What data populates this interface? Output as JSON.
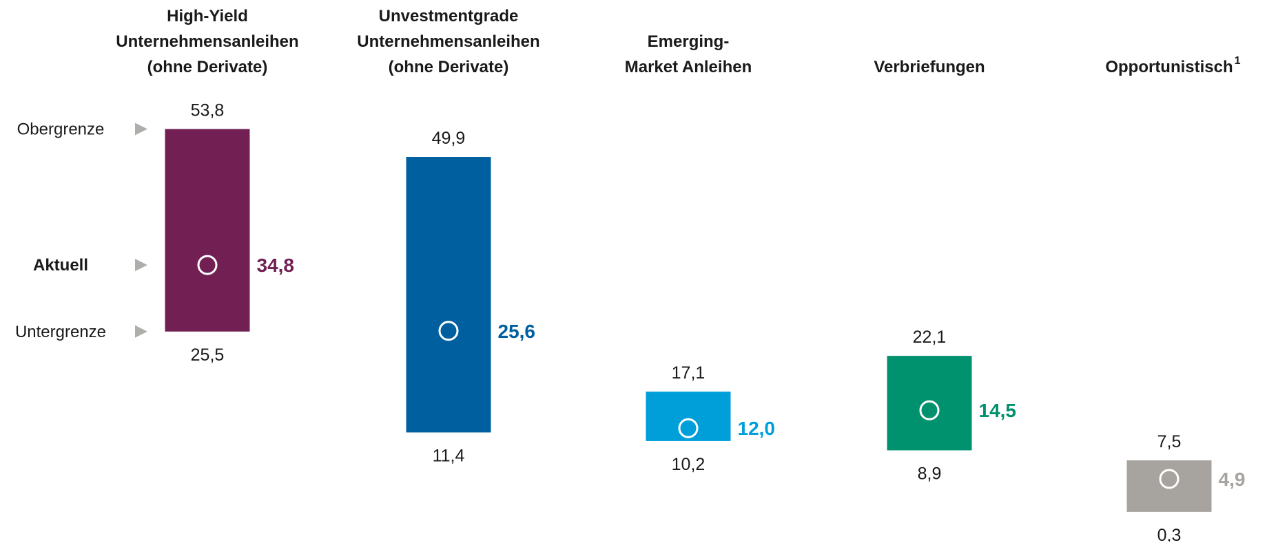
{
  "chart_data": {
    "type": "range",
    "categories": [
      "High-Yield\nUnternehmensanleihen\n(ohne Derivate)",
      "Unvestmentgrade\nUnternehmensanleihen\n(ohne Derivate)",
      "Emerging-\nMarket Anleihen",
      "Verbriefungen",
      "Opportunistisch"
    ],
    "category_notes": [
      null,
      null,
      null,
      null,
      "1"
    ],
    "colors": [
      "#722053",
      "#005f9e",
      "#009fda",
      "#00916e",
      "#a7a39f"
    ],
    "ylim": [
      0,
      60
    ],
    "series": [
      {
        "name": "Obergrenze",
        "values": [
          53.8,
          49.9,
          17.1,
          22.1,
          7.5
        ],
        "value_labels": [
          "53,8",
          "49,9",
          "17,1",
          "22,1",
          "7,5"
        ]
      },
      {
        "name": "Aktuell",
        "values": [
          34.8,
          25.6,
          12.0,
          14.5,
          4.9
        ],
        "value_labels": [
          "34,8",
          "25,6",
          "12,0",
          "14,5",
          "4,9"
        ]
      },
      {
        "name": "Untergrenze",
        "values": [
          25.5,
          11.4,
          10.2,
          8.9,
          0.3
        ],
        "value_labels": [
          "25,5",
          "11,4",
          "10,2",
          "8,9",
          "0,3"
        ]
      }
    ]
  }
}
